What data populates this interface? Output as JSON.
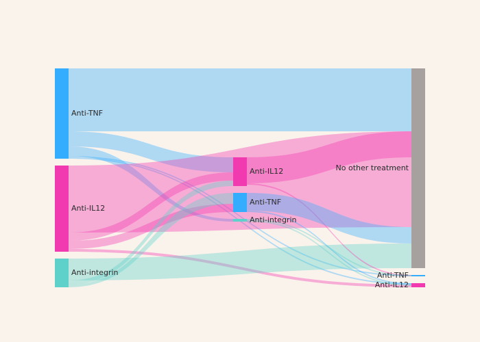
{
  "diagram": {
    "type": "sankey",
    "colors": {
      "background": "#faf3ec",
      "anti_tnf": "#35adff",
      "anti_il12": "#f23ab0",
      "anti_integrin": "#5ed1cb",
      "no_other_treatment": "#a6a19f"
    },
    "nodes": [
      {
        "id": "s1_tnf",
        "label": "Anti-TNF",
        "color": "#35adff"
      },
      {
        "id": "s1_il12",
        "label": "Anti-IL12",
        "color": "#f23ab0"
      },
      {
        "id": "s1_integrin",
        "label": "Anti-integrin",
        "color": "#5ed1cb"
      },
      {
        "id": "s2_il12",
        "label": "Anti-IL12",
        "color": "#f23ab0"
      },
      {
        "id": "s2_tnf",
        "label": "Anti-TNF",
        "color": "#35adff"
      },
      {
        "id": "s2_integrin",
        "label": "Anti-integrin",
        "color": "#5ed1cb"
      },
      {
        "id": "s3_none",
        "label": "No other treatment",
        "color": "#a6a19f"
      },
      {
        "id": "s3_tnf",
        "label": "Anti-TNF",
        "color": "#35adff"
      },
      {
        "id": "s3_il12",
        "label": "Anti-IL12",
        "color": "#f23ab0"
      }
    ]
  }
}
